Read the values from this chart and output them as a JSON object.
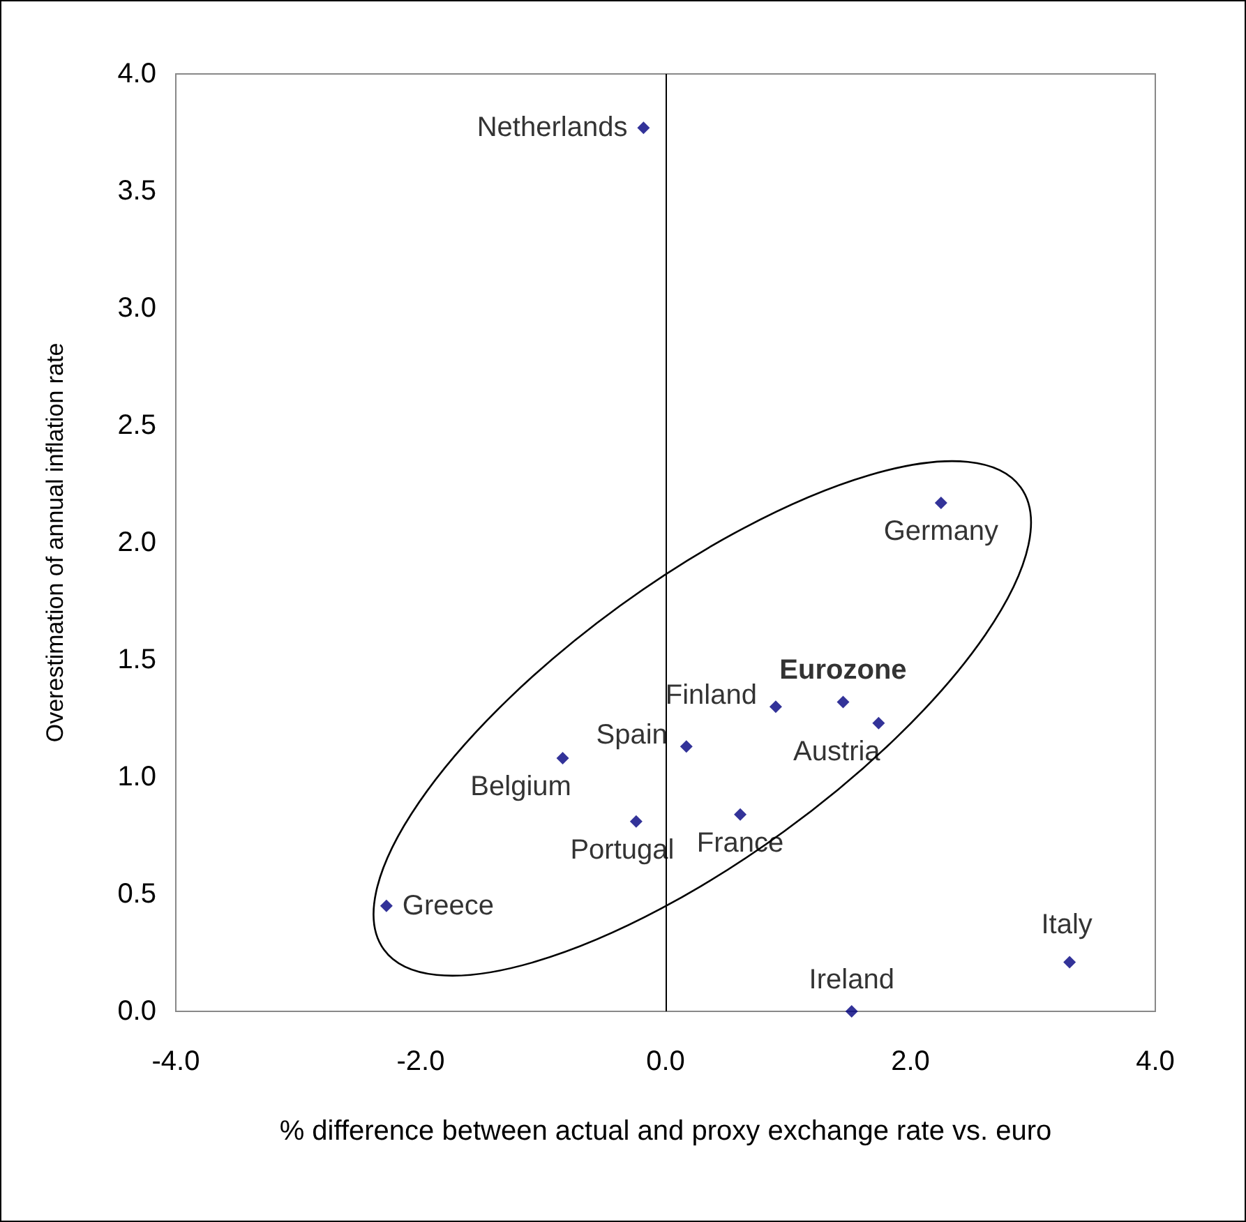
{
  "chart_data": {
    "type": "scatter",
    "xlabel": "% difference between actual and proxy exchange rate vs. euro",
    "ylabel": "Overestimation of annual inflation rate",
    "series": [
      {
        "color": "#000080",
        "x": [
          -0.18,
          2.25,
          1.45,
          1.74,
          0.9,
          0.17,
          -0.84,
          0.61,
          -0.24,
          -2.28,
          1.52,
          3.3
        ],
        "values": [
          3.77,
          2.17,
          1.32,
          1.23,
          1.3,
          1.13,
          1.08,
          0.84,
          0.81,
          0.45,
          0.0,
          0.21
        ],
        "value_labels": [
          "Netherlands",
          "Germany",
          "Eurozone",
          "Austria",
          "Finland",
          "Spain",
          "Belgium",
          "France",
          "Portugal",
          "Greece",
          "Ireland",
          "Italy"
        ]
      }
    ],
    "xlim": [
      -4,
      4
    ],
    "xticks": [
      {
        "value": -4,
        "label": "-4.0"
      },
      {
        "value": -2,
        "label": "-2.0"
      },
      {
        "value": 0,
        "label": "0.0"
      },
      {
        "value": 2,
        "label": "2.0"
      },
      {
        "value": 4,
        "label": "4.0"
      }
    ],
    "ylim": [
      0,
      4
    ],
    "yticks": [
      {
        "value": 0,
        "label": "0.0"
      },
      {
        "value": 0.5,
        "label": "0.5"
      },
      {
        "value": 1,
        "label": "1.0"
      },
      {
        "value": 1.5,
        "label": "1.5"
      },
      {
        "value": 2,
        "label": "2.0"
      },
      {
        "value": 2.5,
        "label": "2.5"
      },
      {
        "value": 3,
        "label": "3.0"
      },
      {
        "value": 3.5,
        "label": "3.5"
      },
      {
        "value": 4,
        "label": "4.0"
      }
    ],
    "ref_lines": [
      {
        "axis": "x",
        "value": 0,
        "color": "#000000"
      }
    ],
    "grid": false,
    "marker": "diamond"
  }
}
